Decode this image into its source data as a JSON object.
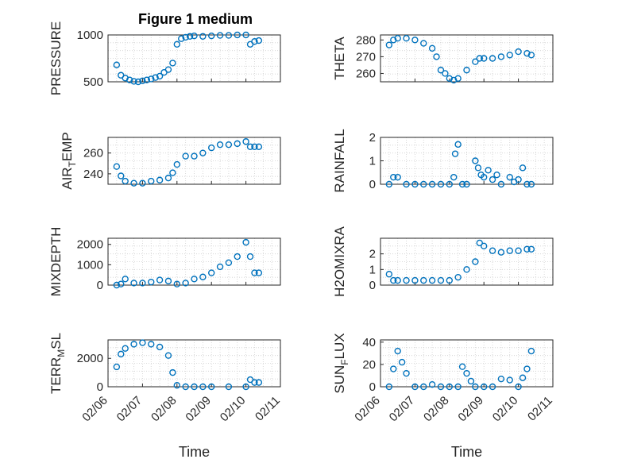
{
  "figure": {
    "title": "Figure 1 medium",
    "marker_color": "#0072BD",
    "grid": "dotted minor grid on"
  },
  "chart_data": [
    {
      "type": "scatter",
      "ylabel": "PRESSURE",
      "ylabel_sub": "",
      "ylim": [
        500,
        1000
      ],
      "yticks": [
        "500",
        "1000"
      ],
      "xticks": [],
      "xlabel": "",
      "x": [
        "02/06 06:00",
        "02/06 09:00",
        "02/06 12:00",
        "02/06 15:00",
        "02/06 18:00",
        "02/06 21:00",
        "02/07 00:00",
        "02/07 03:00",
        "02/07 06:00",
        "02/07 09:00",
        "02/07 12:00",
        "02/07 15:00",
        "02/07 18:00",
        "02/07 21:00",
        "02/08 00:00",
        "02/08 03:00",
        "02/08 06:00",
        "02/08 09:00",
        "02/08 12:00",
        "02/08 18:00",
        "02/09 00:00",
        "02/09 06:00",
        "02/09 12:00",
        "02/09 18:00",
        "02/10 00:00",
        "02/10 03:00",
        "02/10 06:00",
        "02/10 09:00"
      ],
      "y": [
        680,
        570,
        540,
        520,
        505,
        500,
        510,
        520,
        530,
        545,
        560,
        600,
        630,
        700,
        900,
        960,
        975,
        985,
        990,
        985,
        990,
        995,
        995,
        1000,
        1000,
        900,
        930,
        940
      ]
    },
    {
      "type": "scatter",
      "ylabel": "THETA",
      "ylabel_sub": "",
      "ylim": [
        255,
        283
      ],
      "yticks": [
        "260",
        "270",
        "280"
      ],
      "xticks": [],
      "xlabel": "",
      "x": [
        "02/06 06:00",
        "02/06 09:00",
        "02/06 12:00",
        "02/06 18:00",
        "02/07 00:00",
        "02/07 06:00",
        "02/07 12:00",
        "02/07 15:00",
        "02/07 18:00",
        "02/07 21:00",
        "02/08 00:00",
        "02/08 03:00",
        "02/08 06:00",
        "02/08 12:00",
        "02/08 18:00",
        "02/08 21:00",
        "02/09 00:00",
        "02/09 06:00",
        "02/09 12:00",
        "02/09 18:00",
        "02/10 00:00",
        "02/10 06:00",
        "02/10 09:00"
      ],
      "y": [
        277,
        280,
        281,
        281,
        280,
        278,
        275,
        270,
        262,
        260,
        257,
        256,
        257,
        262,
        267,
        269,
        269,
        269,
        270,
        271,
        273,
        272,
        271
      ]
    },
    {
      "type": "scatter",
      "ylabel": "AIR",
      "ylabel_sub": "T",
      "ylabel_rest": "EMP",
      "ylim": [
        230,
        275
      ],
      "yticks": [
        "240",
        "260"
      ],
      "xticks": [],
      "xlabel": "",
      "x": [
        "02/06 06:00",
        "02/06 09:00",
        "02/06 12:00",
        "02/06 18:00",
        "02/07 00:00",
        "02/07 06:00",
        "02/07 12:00",
        "02/07 18:00",
        "02/07 21:00",
        "02/08 00:00",
        "02/08 06:00",
        "02/08 12:00",
        "02/08 18:00",
        "02/09 00:00",
        "02/09 06:00",
        "02/09 12:00",
        "02/09 18:00",
        "02/10 00:00",
        "02/10 03:00",
        "02/10 06:00",
        "02/10 09:00"
      ],
      "y": [
        247,
        238,
        233,
        231,
        231,
        233,
        234,
        236,
        241,
        249,
        257,
        257,
        260,
        265,
        268,
        268,
        269,
        271,
        266,
        266,
        266
      ]
    },
    {
      "type": "scatter",
      "ylabel": "RAINFALL",
      "ylabel_sub": "",
      "ylim": [
        0,
        2
      ],
      "yticks": [
        "0",
        "1",
        "2"
      ],
      "xticks": [],
      "xlabel": "",
      "x": [
        "02/06 06:00",
        "02/06 09:00",
        "02/06 12:00",
        "02/06 18:00",
        "02/07 00:00",
        "02/07 06:00",
        "02/07 12:00",
        "02/07 18:00",
        "02/08 00:00",
        "02/08 03:00",
        "02/08 04:00",
        "02/08 06:00",
        "02/08 09:00",
        "02/08 12:00",
        "02/08 18:00",
        "02/08 20:00",
        "02/08 22:00",
        "02/09 00:00",
        "02/09 03:00",
        "02/09 06:00",
        "02/09 09:00",
        "02/09 12:00",
        "02/09 18:00",
        "02/09 21:00",
        "02/10 00:00",
        "02/10 03:00",
        "02/10 06:00",
        "02/10 09:00"
      ],
      "y": [
        0,
        0.3,
        0.3,
        0,
        0,
        0,
        0,
        0,
        0,
        0.3,
        1.3,
        1.7,
        0,
        0,
        1.0,
        0.7,
        0.4,
        0.3,
        0.6,
        0.2,
        0.4,
        0,
        0.3,
        0.1,
        0.2,
        0.7,
        0,
        0
      ]
    },
    {
      "type": "scatter",
      "ylabel": "MIXDEPTH",
      "ylabel_sub": "",
      "ylim": [
        0,
        2300
      ],
      "yticks": [
        "0",
        "1000",
        "2000"
      ],
      "xticks": [],
      "xlabel": "",
      "x": [
        "02/06 06:00",
        "02/06 09:00",
        "02/06 12:00",
        "02/06 18:00",
        "02/07 00:00",
        "02/07 06:00",
        "02/07 12:00",
        "02/07 18:00",
        "02/08 00:00",
        "02/08 06:00",
        "02/08 12:00",
        "02/08 18:00",
        "02/09 00:00",
        "02/09 06:00",
        "02/09 12:00",
        "02/09 18:00",
        "02/10 00:00",
        "02/10 03:00",
        "02/10 06:00",
        "02/10 09:00"
      ],
      "y": [
        0,
        50,
        300,
        100,
        100,
        150,
        250,
        200,
        50,
        100,
        300,
        400,
        600,
        900,
        1100,
        1400,
        2100,
        1400,
        600,
        600
      ]
    },
    {
      "type": "scatter",
      "ylabel": "H2OMIXRA",
      "ylabel_sub": "",
      "ylim": [
        0,
        3
      ],
      "yticks": [
        "0",
        "1",
        "2"
      ],
      "xticks": [],
      "xlabel": "",
      "x": [
        "02/06 06:00",
        "02/06 09:00",
        "02/06 12:00",
        "02/06 18:00",
        "02/07 00:00",
        "02/07 06:00",
        "02/07 12:00",
        "02/07 18:00",
        "02/08 00:00",
        "02/08 06:00",
        "02/08 12:00",
        "02/08 18:00",
        "02/08 21:00",
        "02/09 00:00",
        "02/09 06:00",
        "02/09 12:00",
        "02/09 18:00",
        "02/10 00:00",
        "02/10 06:00",
        "02/10 09:00"
      ],
      "y": [
        0.7,
        0.3,
        0.3,
        0.3,
        0.3,
        0.3,
        0.3,
        0.3,
        0.3,
        0.5,
        1.0,
        1.5,
        2.7,
        2.5,
        2.2,
        2.1,
        2.2,
        2.2,
        2.3,
        2.3
      ]
    },
    {
      "type": "scatter",
      "ylabel": "TERR",
      "ylabel_sub": "M",
      "ylabel_rest": "SL",
      "ylim": [
        0,
        3300
      ],
      "yticks": [
        "0",
        "2000"
      ],
      "xticks": [
        "02/06",
        "02/07",
        "02/08",
        "02/09",
        "02/10",
        "02/11"
      ],
      "xlabel": "Time",
      "x": [
        "02/06 06:00",
        "02/06 09:00",
        "02/06 12:00",
        "02/06 18:00",
        "02/07 00:00",
        "02/07 06:00",
        "02/07 12:00",
        "02/07 18:00",
        "02/07 21:00",
        "02/08 00:00",
        "02/08 06:00",
        "02/08 12:00",
        "02/08 18:00",
        "02/09 00:00",
        "02/09 12:00",
        "02/10 00:00",
        "02/10 03:00",
        "02/10 06:00",
        "02/10 09:00"
      ],
      "y": [
        1400,
        2300,
        2700,
        3000,
        3100,
        3000,
        2800,
        2200,
        1000,
        100,
        0,
        0,
        0,
        0,
        0,
        0,
        500,
        300,
        300
      ]
    },
    {
      "type": "scatter",
      "ylabel": "SUN",
      "ylabel_sub": "F",
      "ylabel_rest": "LUX",
      "ylim": [
        0,
        42
      ],
      "yticks": [
        "0",
        "20",
        "40"
      ],
      "xticks": [
        "02/06",
        "02/07",
        "02/08",
        "02/09",
        "02/10",
        "02/11"
      ],
      "xlabel": "Time",
      "x": [
        "02/06 06:00",
        "02/06 09:00",
        "02/06 12:00",
        "02/06 15:00",
        "02/06 18:00",
        "02/07 00:00",
        "02/07 06:00",
        "02/07 12:00",
        "02/07 18:00",
        "02/08 00:00",
        "02/08 06:00",
        "02/08 09:00",
        "02/08 12:00",
        "02/08 15:00",
        "02/08 18:00",
        "02/09 00:00",
        "02/09 06:00",
        "02/09 12:00",
        "02/09 18:00",
        "02/10 00:00",
        "02/10 03:00",
        "02/10 06:00",
        "02/10 09:00"
      ],
      "y": [
        0,
        16,
        32,
        22,
        12,
        0,
        0,
        2,
        0,
        0,
        0,
        18,
        12,
        5,
        0,
        0,
        0,
        7,
        6,
        0,
        8,
        16,
        32
      ]
    }
  ]
}
